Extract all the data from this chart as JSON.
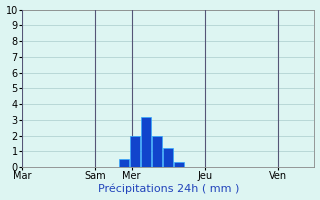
{
  "xlabel": "Précipitations 24h ( mm )",
  "background_color": "#ddf5f2",
  "bar_color_dark": "#1144cc",
  "bar_color_light": "#33aaff",
  "ylim": [
    0,
    10
  ],
  "yticks": [
    0,
    1,
    2,
    3,
    4,
    5,
    6,
    7,
    8,
    9,
    10
  ],
  "day_labels": [
    "Mar",
    "Sam",
    "Mer",
    "Jeu",
    "Ven"
  ],
  "day_tick_positions": [
    0,
    2,
    3,
    5,
    7
  ],
  "xlim": [
    0,
    8
  ],
  "bar_centers": [
    2.8,
    3.1,
    3.4,
    3.7,
    4.0,
    4.3
  ],
  "bar_values": [
    0.5,
    2.0,
    3.2,
    2.0,
    1.2,
    0.3
  ],
  "bar_width": 0.28,
  "grid_color": "#aacccc",
  "spine_color": "#888888",
  "vline_color": "#555577",
  "vline_positions": [
    0,
    2,
    3,
    5,
    7
  ],
  "xlabel_color": "#2244bb",
  "xlabel_fontsize": 8,
  "tick_fontsize": 7
}
